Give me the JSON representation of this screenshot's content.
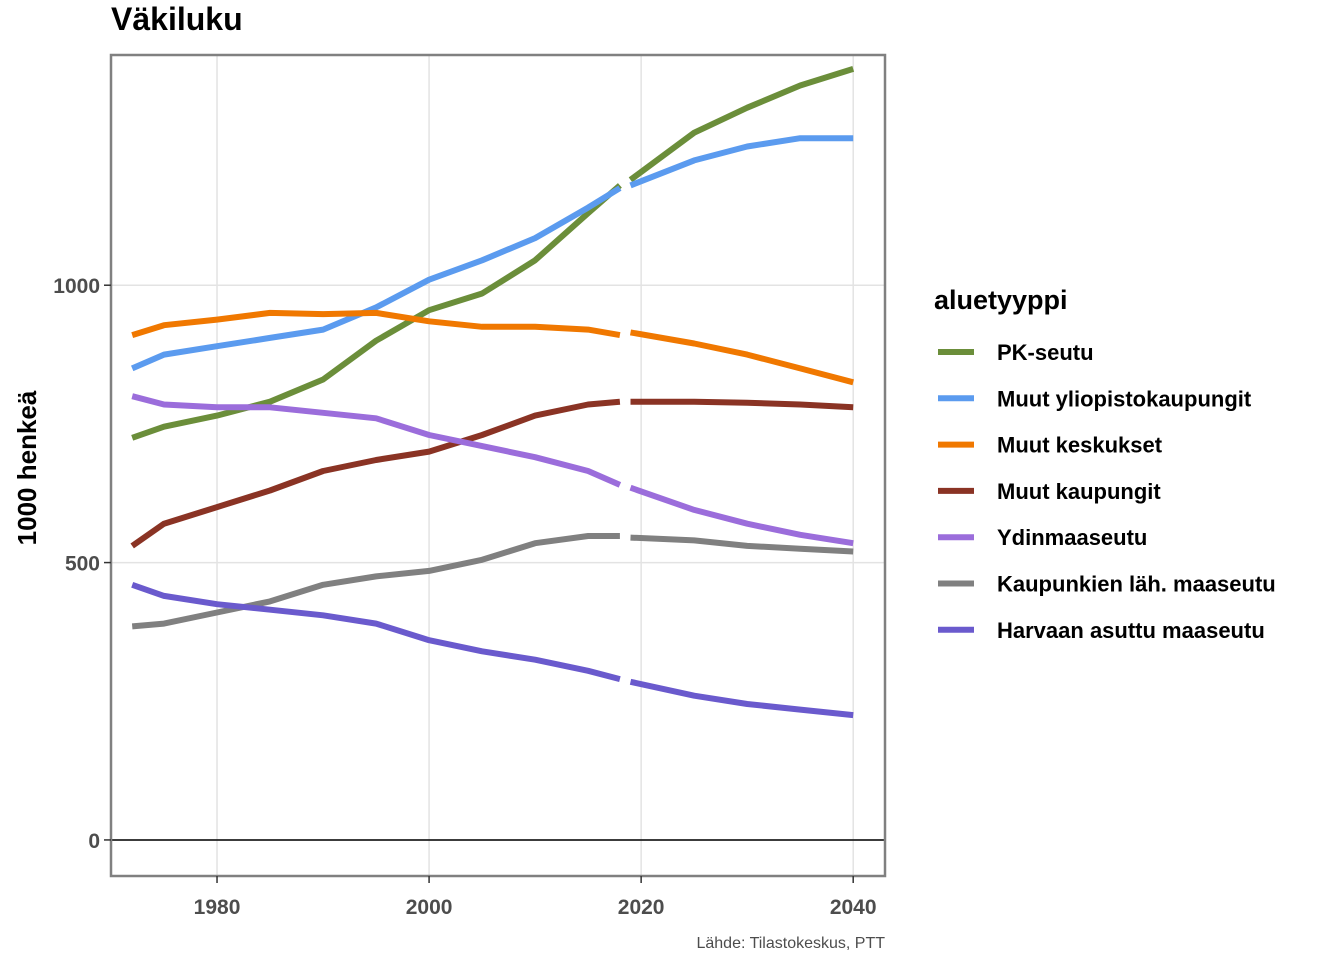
{
  "chart_data": {
    "type": "line",
    "title": "Väkiluku",
    "xlabel": "",
    "ylabel": "1000 henkeä",
    "caption": "Lähde: Tilastokeskus, PTT",
    "xlim": [
      1970,
      2043
    ],
    "ylim": [
      -65,
      1415
    ],
    "x_ticks": [
      1980,
      2000,
      2020,
      2040
    ],
    "y_ticks": [
      0,
      500,
      1000
    ],
    "x_tick_labels": [
      "1980",
      "2000",
      "2020",
      "2040"
    ],
    "y_tick_labels": [
      "0",
      "500",
      "1000"
    ],
    "grid": true,
    "zero_line": true,
    "legend_position": "right",
    "legend_title": "aluetyyppi",
    "history_end": 2018,
    "projection_start": 2019,
    "series": [
      {
        "name": "PK-seutu",
        "color": "#6b8e3a",
        "x": [
          1972,
          1975,
          1980,
          1985,
          1990,
          1995,
          2000,
          2005,
          2010,
          2015,
          2018,
          2019,
          2025,
          2030,
          2035,
          2040
        ],
        "values": [
          725,
          745,
          765,
          790,
          830,
          900,
          955,
          985,
          1045,
          1130,
          1180,
          1190,
          1275,
          1320,
          1360,
          1390
        ]
      },
      {
        "name": "Muut yliopistokaupungit",
        "color": "#5b9bef",
        "x": [
          1972,
          1975,
          1980,
          1985,
          1990,
          1995,
          2000,
          2005,
          2010,
          2015,
          2018,
          2019,
          2025,
          2030,
          2035,
          2040
        ],
        "values": [
          850,
          875,
          890,
          905,
          920,
          960,
          1010,
          1045,
          1085,
          1140,
          1175,
          1180,
          1225,
          1250,
          1265,
          1265
        ]
      },
      {
        "name": "Muut keskukset",
        "color": "#f07800",
        "x": [
          1972,
          1975,
          1980,
          1985,
          1990,
          1995,
          2000,
          2005,
          2010,
          2015,
          2018,
          2019,
          2025,
          2030,
          2035,
          2040
        ],
        "values": [
          910,
          928,
          938,
          950,
          948,
          950,
          935,
          925,
          925,
          920,
          910,
          915,
          895,
          875,
          850,
          825
        ]
      },
      {
        "name": "Muut kaupungit",
        "color": "#8a3324",
        "x": [
          1972,
          1975,
          1980,
          1985,
          1990,
          1995,
          2000,
          2005,
          2010,
          2015,
          2018,
          2019,
          2025,
          2030,
          2035,
          2040
        ],
        "values": [
          530,
          570,
          600,
          630,
          665,
          685,
          700,
          730,
          765,
          785,
          790,
          790,
          790,
          788,
          785,
          780
        ]
      },
      {
        "name": "Ydinmaaseutu",
        "color": "#9b6ddb",
        "x": [
          1972,
          1975,
          1980,
          1985,
          1990,
          1995,
          2000,
          2005,
          2010,
          2015,
          2018,
          2019,
          2025,
          2030,
          2035,
          2040
        ],
        "values": [
          800,
          785,
          780,
          780,
          770,
          760,
          730,
          710,
          690,
          665,
          640,
          635,
          595,
          570,
          550,
          535
        ]
      },
      {
        "name": "Kaupunkien läh. maaseutu",
        "color": "#808080",
        "x": [
          1972,
          1975,
          1980,
          1985,
          1990,
          1995,
          2000,
          2005,
          2010,
          2015,
          2018,
          2019,
          2025,
          2030,
          2035,
          2040
        ],
        "values": [
          385,
          390,
          410,
          430,
          460,
          475,
          485,
          505,
          535,
          548,
          548,
          545,
          540,
          530,
          525,
          520
        ]
      },
      {
        "name": "Harvaan asuttu maaseutu",
        "color": "#6a5acd",
        "x": [
          1972,
          1975,
          1980,
          1985,
          1990,
          1995,
          2000,
          2005,
          2010,
          2015,
          2018,
          2019,
          2025,
          2030,
          2035,
          2040
        ],
        "values": [
          460,
          440,
          425,
          415,
          405,
          390,
          360,
          340,
          325,
          305,
          290,
          285,
          260,
          245,
          235,
          225
        ]
      }
    ]
  }
}
